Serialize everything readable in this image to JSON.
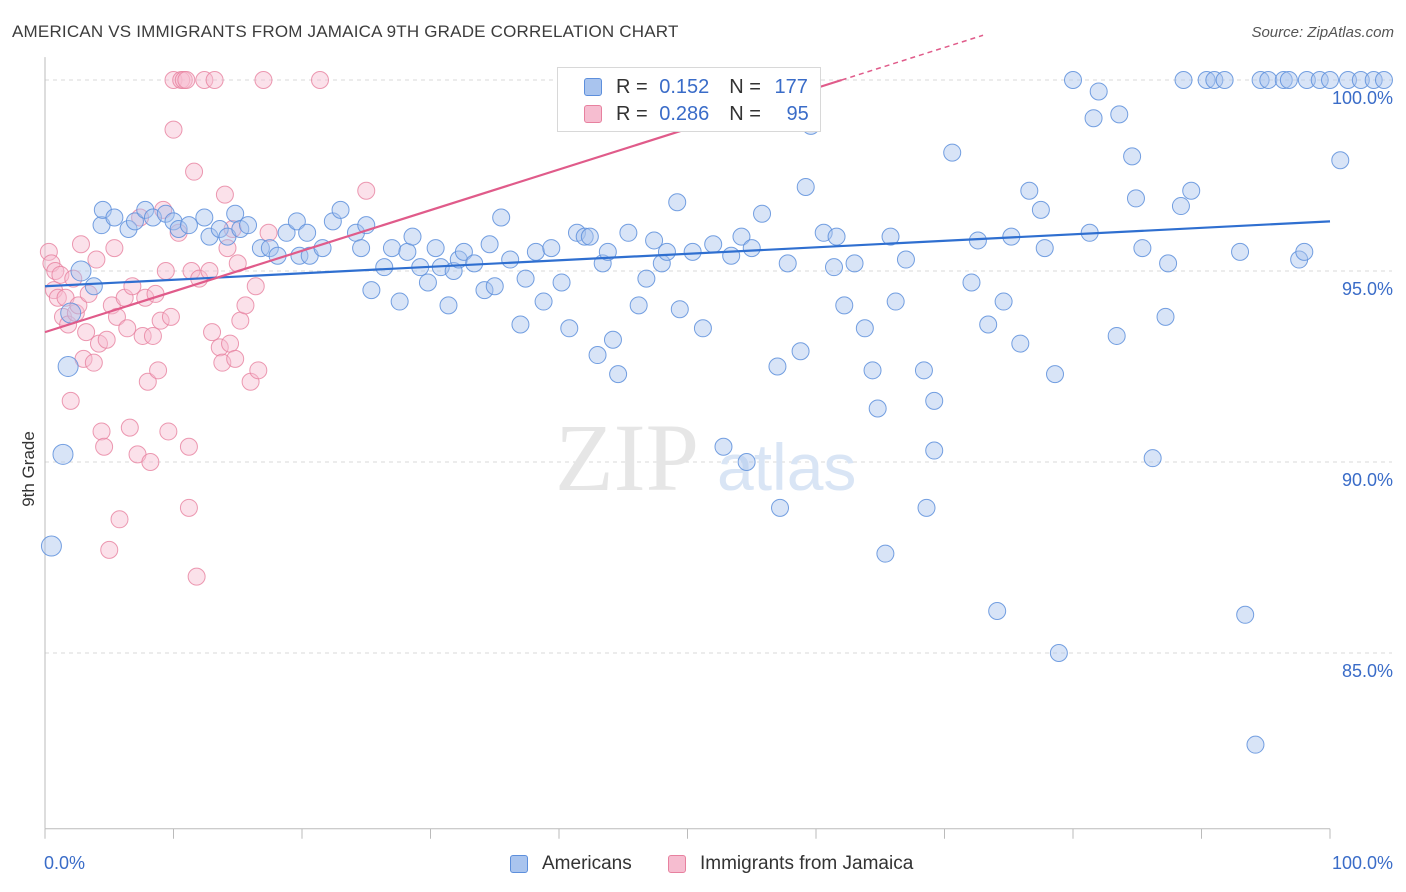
{
  "title": "AMERICAN VS IMMIGRANTS FROM JAMAICA 9TH GRADE CORRELATION CHART",
  "source": "Source: ZipAtlas.com",
  "watermark": {
    "zip": "ZIP",
    "atlas": "atlas"
  },
  "legend": {
    "series1": {
      "r_label": "R =",
      "r_value": "0.152",
      "n_label": "N =",
      "n_value": "177"
    },
    "series2": {
      "r_label": "R =",
      "r_value": "0.286",
      "n_label": "N =",
      "n_value": "95"
    }
  },
  "colors": {
    "blue_fill": "#a9c4ee",
    "blue_stroke": "#5d8fdc",
    "blue_line": "#2f6fd0",
    "pink_fill": "#f6bdd0",
    "pink_stroke": "#e7819f",
    "pink_line": "#e05b8a",
    "tick_label": "#3a6cc8",
    "grid": "#d9d9d9"
  },
  "chart_data": {
    "type": "scatter",
    "title": "AMERICAN VS IMMIGRANTS FROM JAMAICA 9TH GRADE CORRELATION CHART",
    "xlabel": "",
    "ylabel": "9th Grade",
    "xlim": [
      0,
      100
    ],
    "ylim": [
      80.4,
      100.6
    ],
    "x_tick_labels": [
      "0.0%",
      "100.0%"
    ],
    "y_ticks": [
      85,
      90,
      95,
      100
    ],
    "y_tick_labels": [
      "85.0%",
      "90.0%",
      "95.0%",
      "100.0%"
    ],
    "grid": "horizontal dashed",
    "legend_position": "bottom-center",
    "series": [
      {
        "name": "Americans",
        "color": "#5d8fdc",
        "trend": {
          "x": [
            0,
            100
          ],
          "y": [
            94.6,
            96.3
          ]
        },
        "points": [
          [
            0.5,
            87.8
          ],
          [
            1.4,
            90.2
          ],
          [
            1.8,
            92.5
          ],
          [
            2,
            93.9
          ],
          [
            2.8,
            95
          ],
          [
            3.8,
            94.6
          ],
          [
            4.4,
            96.2
          ],
          [
            4.5,
            96.6
          ],
          [
            5.4,
            96.4
          ],
          [
            6.5,
            96.1
          ],
          [
            7,
            96.3
          ],
          [
            7.8,
            96.6
          ],
          [
            8.4,
            96.4
          ],
          [
            9.4,
            96.5
          ],
          [
            10,
            96.3
          ],
          [
            10.4,
            96.1
          ],
          [
            11.2,
            96.2
          ],
          [
            12.4,
            96.4
          ],
          [
            12.8,
            95.9
          ],
          [
            13.6,
            96.1
          ],
          [
            14.2,
            95.9
          ],
          [
            14.8,
            96.5
          ],
          [
            15.2,
            96.1
          ],
          [
            15.8,
            96.2
          ],
          [
            16.8,
            95.6
          ],
          [
            17.5,
            95.6
          ],
          [
            18.1,
            95.4
          ],
          [
            18.8,
            96
          ],
          [
            19.6,
            96.3
          ],
          [
            19.8,
            95.4
          ],
          [
            20.4,
            96
          ],
          [
            20.6,
            95.4
          ],
          [
            21.6,
            95.6
          ],
          [
            22.4,
            96.3
          ],
          [
            23,
            96.6
          ],
          [
            24.2,
            96
          ],
          [
            24.6,
            95.6
          ],
          [
            25,
            96.2
          ],
          [
            25.4,
            94.5
          ],
          [
            26.4,
            95.1
          ],
          [
            27,
            95.6
          ],
          [
            27.6,
            94.2
          ],
          [
            28.2,
            95.5
          ],
          [
            28.6,
            95.9
          ],
          [
            29.2,
            95.1
          ],
          [
            29.8,
            94.7
          ],
          [
            30.4,
            95.6
          ],
          [
            30.8,
            95.1
          ],
          [
            31.4,
            94.1
          ],
          [
            31.8,
            95
          ],
          [
            32.2,
            95.3
          ],
          [
            32.6,
            95.5
          ],
          [
            33.4,
            95.2
          ],
          [
            34.2,
            94.5
          ],
          [
            34.6,
            95.7
          ],
          [
            35,
            94.6
          ],
          [
            35.5,
            96.4
          ],
          [
            36.2,
            95.3
          ],
          [
            37,
            93.6
          ],
          [
            37.4,
            94.8
          ],
          [
            38.2,
            95.5
          ],
          [
            38.8,
            94.2
          ],
          [
            39.4,
            95.6
          ],
          [
            40.2,
            94.7
          ],
          [
            40.8,
            93.5
          ],
          [
            41.4,
            96
          ],
          [
            42,
            95.9
          ],
          [
            42.4,
            95.9
          ],
          [
            43,
            92.8
          ],
          [
            43.4,
            95.2
          ],
          [
            43.8,
            95.5
          ],
          [
            44.2,
            93.2
          ],
          [
            44.6,
            92.3
          ],
          [
            45.4,
            96
          ],
          [
            46.2,
            94.1
          ],
          [
            46.8,
            94.8
          ],
          [
            47.4,
            95.8
          ],
          [
            48,
            95.2
          ],
          [
            48.4,
            95.5
          ],
          [
            49.2,
            96.8
          ],
          [
            49.4,
            94
          ],
          [
            50.4,
            95.5
          ],
          [
            51.2,
            93.5
          ],
          [
            52,
            95.7
          ],
          [
            52.8,
            90.4
          ],
          [
            53.4,
            95.4
          ],
          [
            54.2,
            95.9
          ],
          [
            54.6,
            90
          ],
          [
            55,
            95.6
          ],
          [
            55.8,
            96.5
          ],
          [
            57,
            92.5
          ],
          [
            57.2,
            88.8
          ],
          [
            57.8,
            95.2
          ],
          [
            58.8,
            92.9
          ],
          [
            59.2,
            97.2
          ],
          [
            59.6,
            98.8
          ],
          [
            60.6,
            96
          ],
          [
            61.4,
            95.1
          ],
          [
            61.6,
            95.9
          ],
          [
            62.2,
            94.1
          ],
          [
            63,
            95.2
          ],
          [
            63.8,
            93.5
          ],
          [
            64.4,
            92.4
          ],
          [
            64.8,
            91.4
          ],
          [
            65.4,
            87.6
          ],
          [
            65.8,
            95.9
          ],
          [
            66.2,
            94.2
          ],
          [
            67,
            95.3
          ],
          [
            68.4,
            92.4
          ],
          [
            68.6,
            88.8
          ],
          [
            69.2,
            91.6
          ],
          [
            69.2,
            90.3
          ],
          [
            70.6,
            98.1
          ],
          [
            72.1,
            94.7
          ],
          [
            72.6,
            95.8
          ],
          [
            73.4,
            93.6
          ],
          [
            74.1,
            86.1
          ],
          [
            74.6,
            94.2
          ],
          [
            75.2,
            95.9
          ],
          [
            75.9,
            93.1
          ],
          [
            76.6,
            97.1
          ],
          [
            77.5,
            96.6
          ],
          [
            77.8,
            95.6
          ],
          [
            78.6,
            92.3
          ],
          [
            78.9,
            85
          ],
          [
            80,
            100
          ],
          [
            81.3,
            96
          ],
          [
            81.6,
            99
          ],
          [
            82,
            99.7
          ],
          [
            83.4,
            93.3
          ],
          [
            83.6,
            99.1
          ],
          [
            84.6,
            98
          ],
          [
            84.9,
            96.9
          ],
          [
            85.4,
            95.6
          ],
          [
            86.2,
            90.1
          ],
          [
            87.2,
            93.8
          ],
          [
            87.4,
            95.2
          ],
          [
            88.4,
            96.7
          ],
          [
            88.6,
            100
          ],
          [
            89.2,
            97.1
          ],
          [
            90.4,
            100
          ],
          [
            91,
            100
          ],
          [
            91.8,
            100
          ],
          [
            93,
            95.5
          ],
          [
            93.4,
            86
          ],
          [
            94.2,
            82.6
          ],
          [
            94.6,
            100
          ],
          [
            95.2,
            100
          ],
          [
            96.4,
            100
          ],
          [
            96.8,
            100
          ],
          [
            97.6,
            95.3
          ],
          [
            98,
            95.5
          ],
          [
            98.2,
            100
          ],
          [
            99.2,
            100
          ],
          [
            100,
            100
          ],
          [
            100.8,
            97.9
          ],
          [
            101.4,
            100
          ],
          [
            102.4,
            100
          ],
          [
            103.4,
            100
          ],
          [
            104.2,
            100
          ]
        ]
      },
      {
        "name": "Immigrants from Jamaica",
        "color": "#e7819f",
        "trend": {
          "x": [
            0,
            62
          ],
          "y": [
            93.4,
            100.0
          ]
        },
        "points": [
          [
            0.3,
            95.5
          ],
          [
            0.5,
            95.2
          ],
          [
            0.7,
            94.5
          ],
          [
            0.8,
            95
          ],
          [
            1,
            94.3
          ],
          [
            1.2,
            94.9
          ],
          [
            1.4,
            93.8
          ],
          [
            1.6,
            94.3
          ],
          [
            1.8,
            93.6
          ],
          [
            2,
            91.6
          ],
          [
            2.2,
            94.8
          ],
          [
            2.4,
            93.9
          ],
          [
            2.6,
            94.1
          ],
          [
            2.8,
            95.7
          ],
          [
            3,
            92.7
          ],
          [
            3.2,
            93.4
          ],
          [
            3.4,
            94.4
          ],
          [
            3.8,
            92.6
          ],
          [
            4,
            95.3
          ],
          [
            4.2,
            93.1
          ],
          [
            4.4,
            90.8
          ],
          [
            4.6,
            90.4
          ],
          [
            4.8,
            93.2
          ],
          [
            5,
            87.7
          ],
          [
            5.2,
            94.1
          ],
          [
            5.4,
            95.6
          ],
          [
            5.6,
            93.8
          ],
          [
            5.8,
            88.5
          ],
          [
            6.2,
            94.3
          ],
          [
            6.4,
            93.5
          ],
          [
            6.6,
            90.9
          ],
          [
            6.8,
            94.6
          ],
          [
            7.2,
            90.2
          ],
          [
            7.4,
            96.4
          ],
          [
            7.6,
            93.3
          ],
          [
            7.8,
            94.3
          ],
          [
            8,
            92.1
          ],
          [
            8.2,
            90
          ],
          [
            8.4,
            93.3
          ],
          [
            8.6,
            94.4
          ],
          [
            8.8,
            92.4
          ],
          [
            9,
            93.7
          ],
          [
            9.2,
            96.6
          ],
          [
            9.4,
            95
          ],
          [
            9.6,
            90.8
          ],
          [
            9.8,
            93.8
          ],
          [
            10,
            100
          ],
          [
            10,
            98.7
          ],
          [
            10.4,
            96
          ],
          [
            10.6,
            100
          ],
          [
            10.8,
            100
          ],
          [
            11,
            100
          ],
          [
            11.2,
            88.8
          ],
          [
            11.2,
            90.4
          ],
          [
            11.4,
            95
          ],
          [
            11.6,
            97.6
          ],
          [
            11.8,
            87
          ],
          [
            12,
            94.8
          ],
          [
            12.4,
            100
          ],
          [
            12.8,
            95
          ],
          [
            13,
            93.4
          ],
          [
            13.2,
            100
          ],
          [
            13.6,
            93
          ],
          [
            13.8,
            92.6
          ],
          [
            14,
            97
          ],
          [
            14.2,
            95.6
          ],
          [
            14.4,
            93.1
          ],
          [
            14.6,
            96.1
          ],
          [
            14.8,
            92.7
          ],
          [
            15,
            95.2
          ],
          [
            15.2,
            93.7
          ],
          [
            15.6,
            94.1
          ],
          [
            16,
            92.1
          ],
          [
            16.4,
            94.6
          ],
          [
            16.6,
            92.4
          ],
          [
            17,
            100
          ],
          [
            17.4,
            96
          ],
          [
            21.4,
            100
          ],
          [
            25,
            97.1
          ]
        ]
      }
    ]
  },
  "bottom_legend": {
    "item1": "Americans",
    "item2": "Immigrants from Jamaica"
  }
}
